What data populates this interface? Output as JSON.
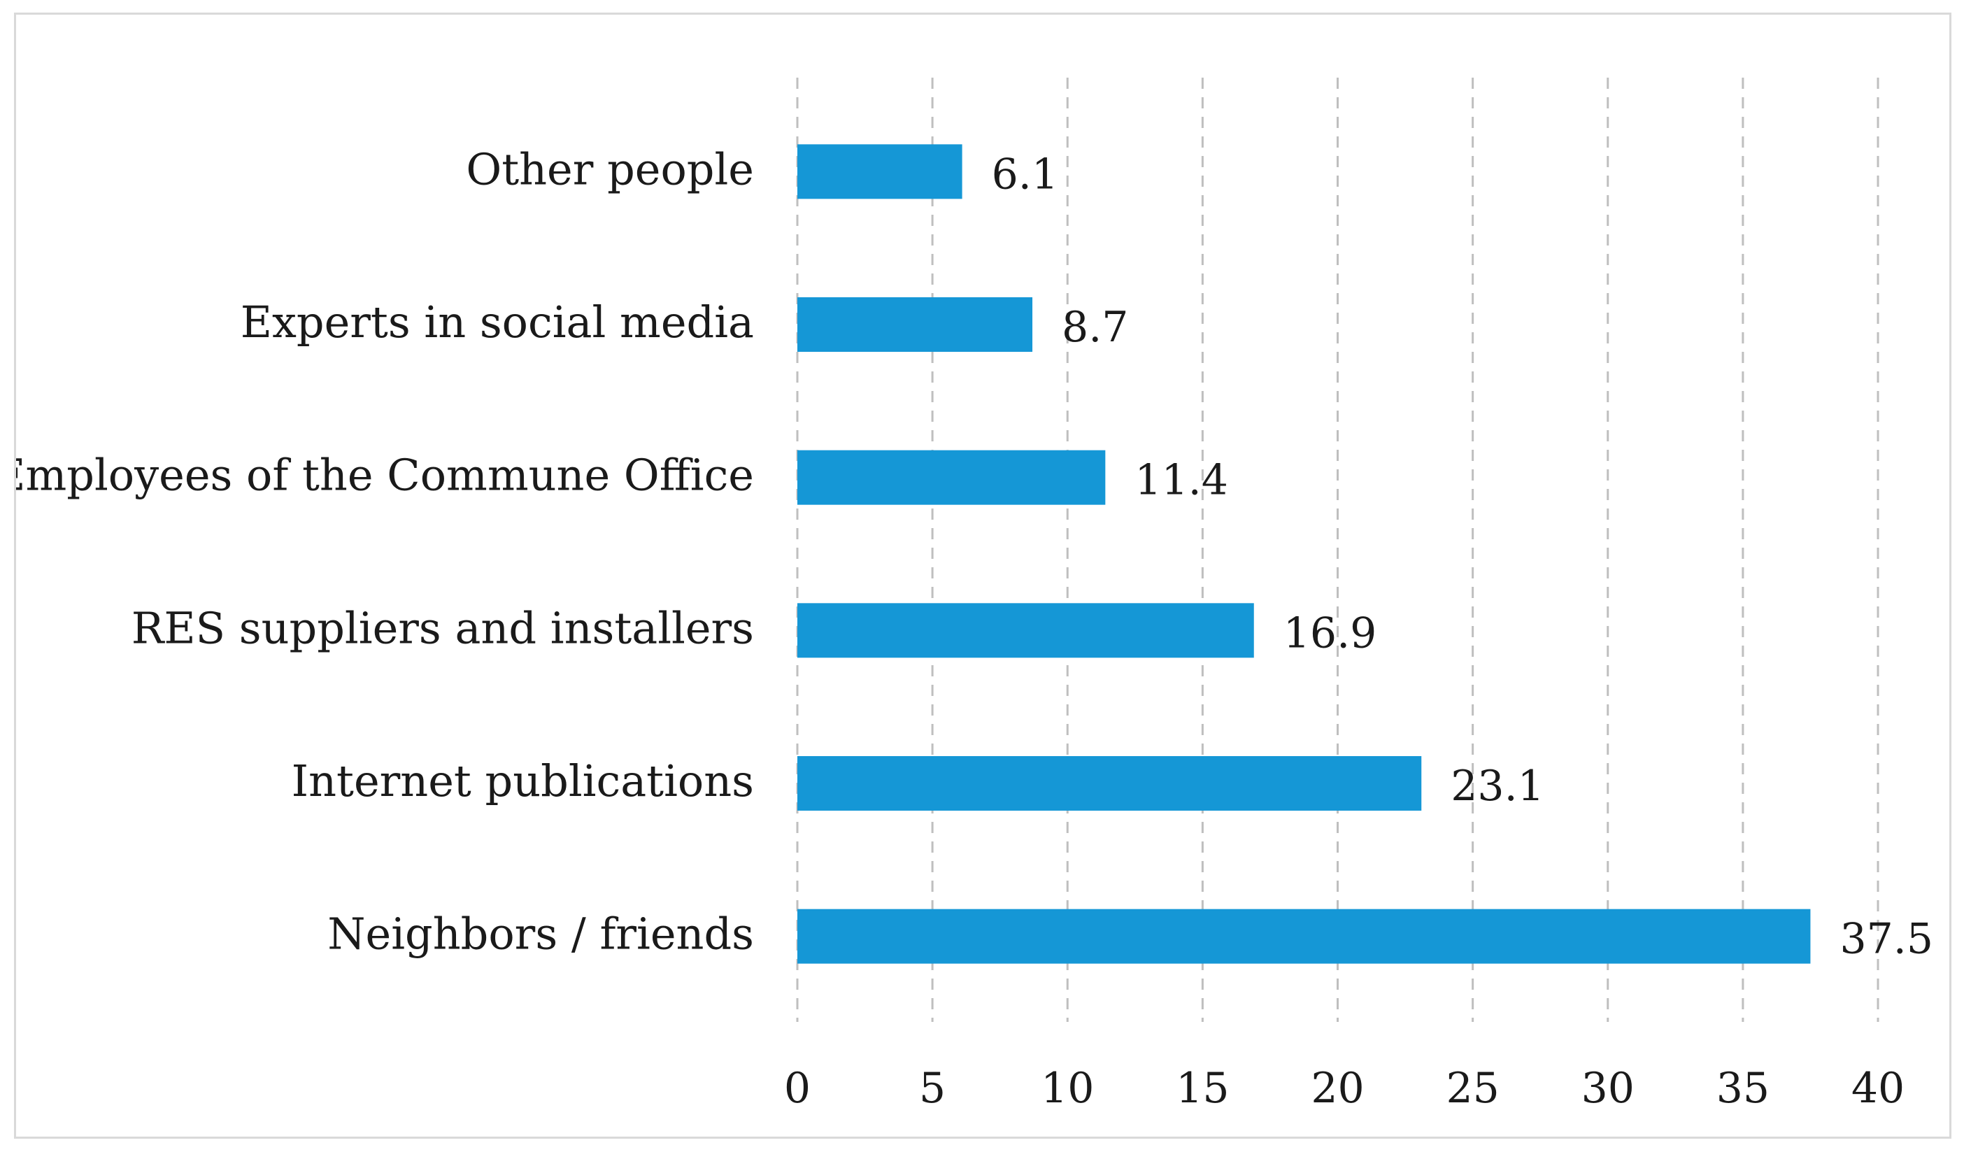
{
  "chart_data": {
    "type": "bar",
    "orientation": "horizontal",
    "title": "",
    "xlabel": "",
    "ylabel": "",
    "categories": [
      "Neighbors / friends",
      "Internet publications",
      "RES suppliers and installers",
      "Employees of the Commune Office",
      "Experts in social media",
      "Other people"
    ],
    "values": [
      37.5,
      23.1,
      16.9,
      11.4,
      8.7,
      6.1
    ],
    "data_labels": [
      "37.5",
      "23.1",
      "16.9",
      "11.4",
      "8.7",
      "6.1"
    ],
    "xlim": [
      0,
      40
    ],
    "x_ticks": [
      0,
      5,
      10,
      15,
      20,
      25,
      30,
      35,
      40
    ],
    "x_tick_labels": [
      "0",
      "5",
      "10",
      "15",
      "20",
      "25",
      "30",
      "35",
      "40"
    ],
    "grid": true,
    "legend": "none",
    "bar_color": "#1597d6"
  }
}
